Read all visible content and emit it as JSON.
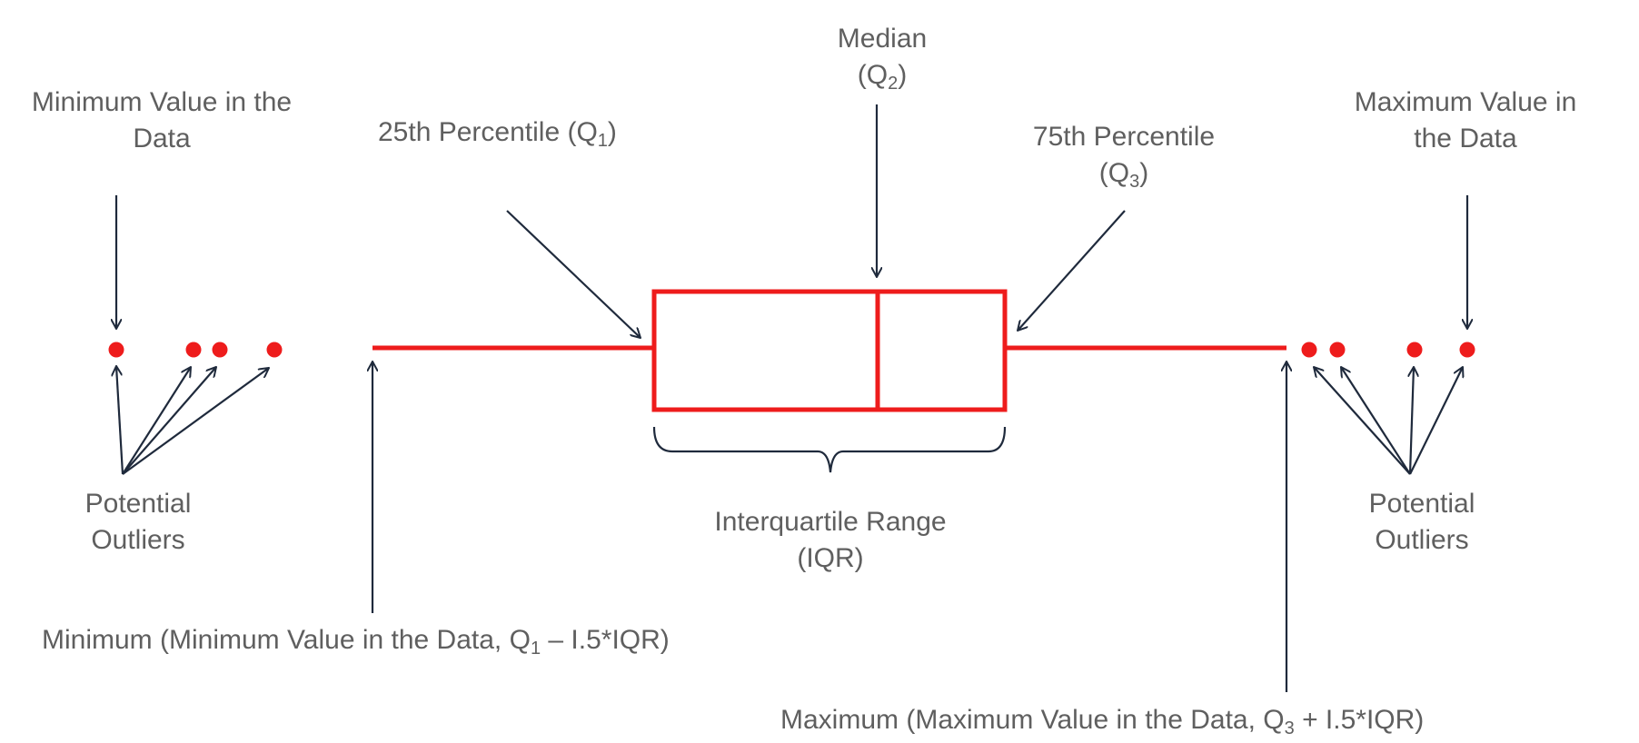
{
  "labels": {
    "median": {
      "line1": "Median",
      "q_prefix": "(Q",
      "q_sub": "2",
      "q_suffix": ")"
    },
    "q1": {
      "text": "25th Percentile (Q",
      "sub": "1",
      "suffix": ")"
    },
    "q3": {
      "line1": "75th Percentile",
      "q_prefix": "(Q",
      "q_sub": "3",
      "q_suffix": ")"
    },
    "min_value": {
      "line1": "Minimum Value in the",
      "line2": "Data"
    },
    "max_value": {
      "line1": "Maximum Value in",
      "line2": "the Data"
    },
    "outliers_left": {
      "line1": "Potential",
      "line2": "Outliers"
    },
    "outliers_right": {
      "line1": "Potential",
      "line2": "Outliers"
    },
    "iqr": {
      "line1": "Interquartile Range",
      "line2": "(IQR)"
    },
    "minimum": {
      "prefix": "Minimum (Minimum Value in the Data, Q",
      "sub": "1",
      "suffix": " – I.5*IQR)"
    },
    "maximum": {
      "prefix": "Maximum (Maximum Value in the Data, Q",
      "sub": "3",
      "suffix": " + I.5*IQR)"
    }
  },
  "colors": {
    "box": "#ee1c1c",
    "arrow": "#1f2a3c",
    "text": "#5f5f5f"
  }
}
